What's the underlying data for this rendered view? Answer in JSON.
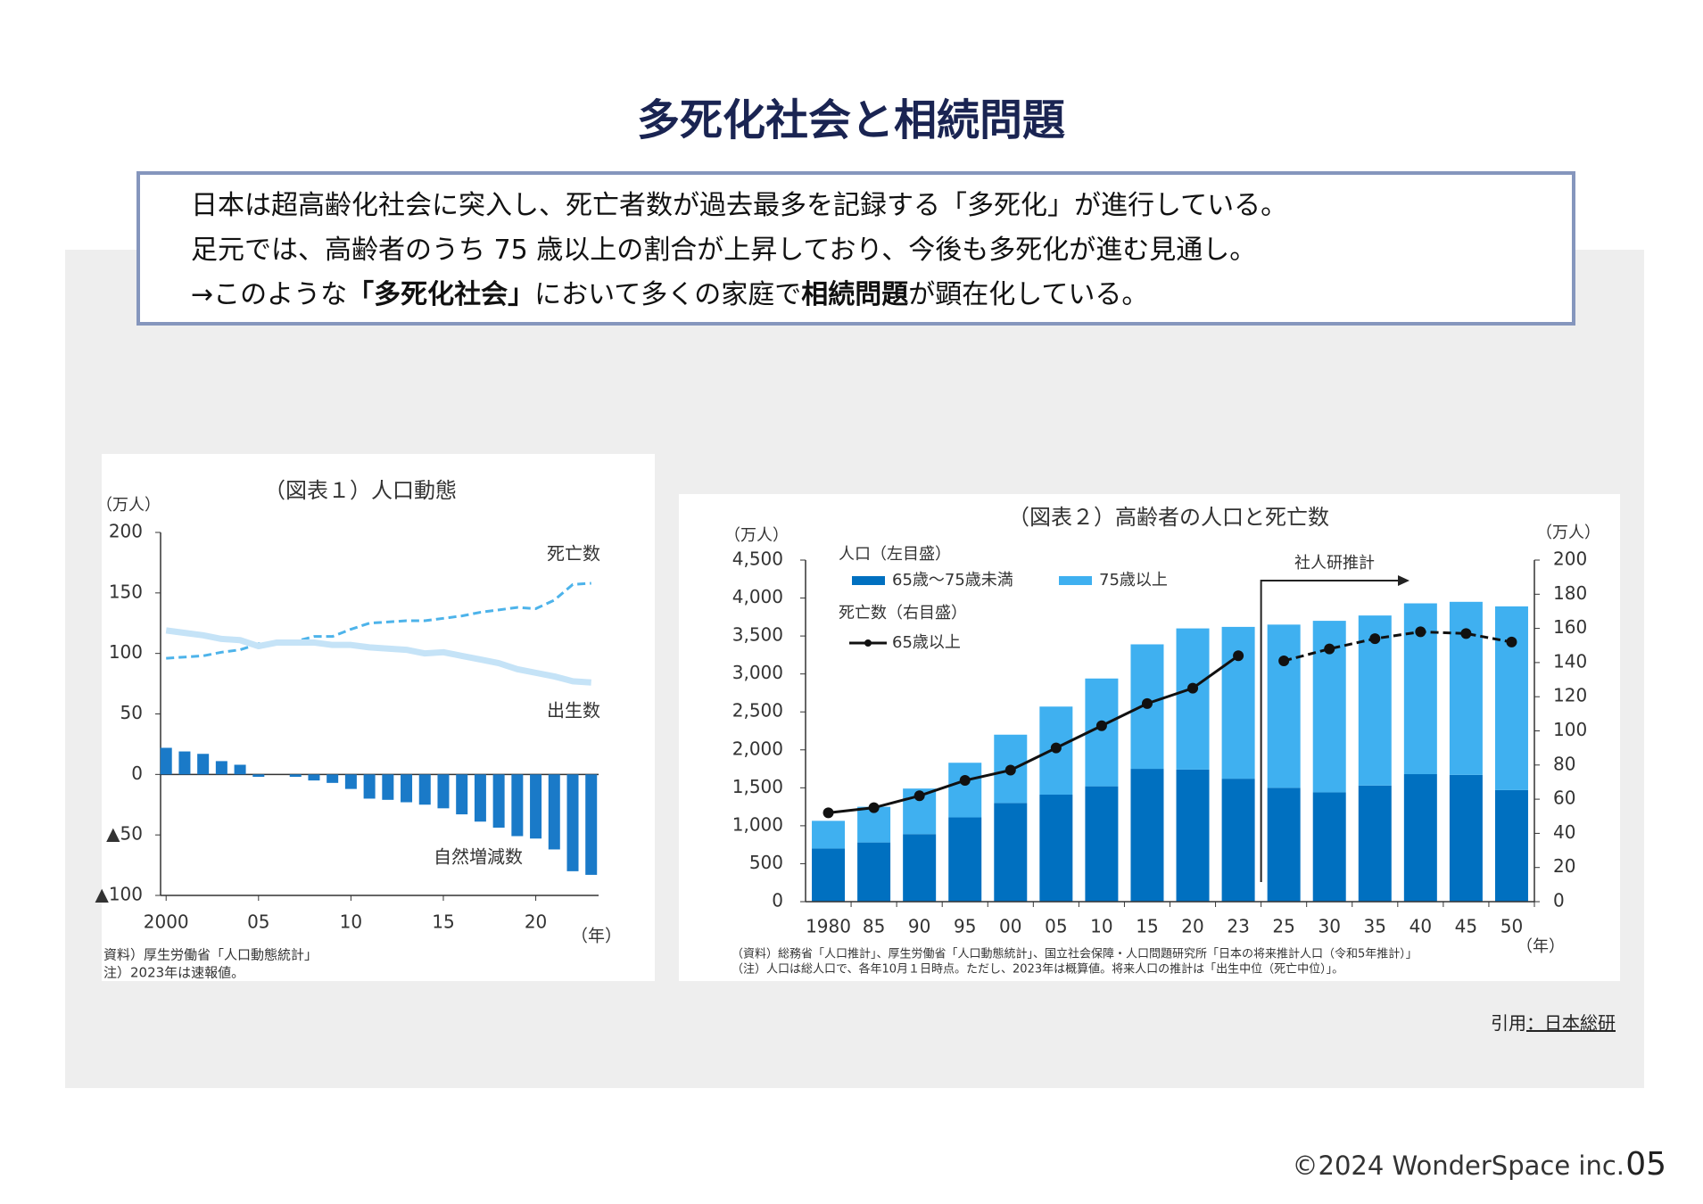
{
  "header": {
    "title": "多死化社会と相続問題"
  },
  "summary": {
    "lines": [
      [
        {
          "text": "日本は超高齢化社会に突入し、死亡者数が過去最多を記録する「多死化」が進行している。",
          "bold": false
        }
      ],
      [
        {
          "text": "足元では、高齢者のうち 75 歳以上の割合が上昇しており、今後も多死化が進む見通し。",
          "bold": false
        }
      ],
      [
        {
          "text": "→このような",
          "bold": false
        },
        {
          "text": "「多死化社会」",
          "bold": true
        },
        {
          "text": "において多くの家庭で",
          "bold": false
        },
        {
          "text": "相続問題",
          "bold": true
        },
        {
          "text": "が顕在化している。",
          "bold": false
        }
      ]
    ]
  },
  "chart_data": [
    {
      "type": "bar_line",
      "title": "（図表１）人口動態",
      "y_unit": "（万人）",
      "x_unit": "（年）",
      "x": [
        2000,
        2001,
        2002,
        2003,
        2004,
        2005,
        2006,
        2007,
        2008,
        2009,
        2010,
        2011,
        2012,
        2013,
        2014,
        2015,
        2016,
        2017,
        2018,
        2019,
        2020,
        2021,
        2022,
        2023
      ],
      "xlim": [
        1999.7,
        2023.4
      ],
      "xticks": [
        {
          "value": 2000,
          "label": "2000"
        },
        {
          "value": 2005,
          "label": "05"
        },
        {
          "value": 2010,
          "label": "10"
        },
        {
          "value": 2015,
          "label": "15"
        },
        {
          "value": 2020,
          "label": "20"
        }
      ],
      "ylim": [
        -100,
        200
      ],
      "yticks": [
        {
          "value": -100,
          "label": "▲100"
        },
        {
          "value": -50,
          "label": "▲50"
        },
        0,
        50,
        100,
        150,
        200
      ],
      "series": [
        {
          "name": "死亡数",
          "type": "line",
          "style": "dashed",
          "color": "#4db3ea",
          "values": [
            96,
            97,
            98,
            101,
            103,
            108,
            108,
            110,
            114,
            114,
            120,
            125,
            126,
            127,
            127,
            129,
            131,
            134,
            136,
            138,
            137,
            144,
            157,
            158
          ]
        },
        {
          "name": "出生数",
          "type": "line",
          "style": "solid",
          "color": "#c5e3f7",
          "values": [
            119,
            117,
            115,
            112,
            111,
            106,
            109,
            109,
            109,
            107,
            107,
            105,
            104,
            103,
            100,
            101,
            98,
            95,
            92,
            87,
            84,
            81,
            77,
            76
          ]
        },
        {
          "name": "自然増減数",
          "type": "bar",
          "color": "#1a7ac8",
          "values": [
            22,
            19,
            17,
            11,
            8,
            -2,
            0,
            -2,
            -5,
            -7,
            -12,
            -20,
            -21,
            -23,
            -25,
            -28,
            -33,
            -39,
            -44,
            -51,
            -53,
            -62,
            -80,
            -83
          ]
        }
      ],
      "notes": [
        "資料）厚生労働省「人口動態統計」",
        "注）2023年は速報値。"
      ]
    },
    {
      "type": "stacked_bar_line",
      "title": "（図表２）高齢者の人口と死亡数",
      "y_unit": "（万人）",
      "y2_unit": "（万人）",
      "x_unit": "（年）",
      "categories": [
        "1980",
        "85",
        "90",
        "95",
        "00",
        "05",
        "10",
        "15",
        "20",
        "23",
        "25",
        "30",
        "35",
        "40",
        "45",
        "50"
      ],
      "ylim": [
        0,
        4500
      ],
      "yticks": [
        0,
        500,
        {
          "value": 1000,
          "label": "1,000"
        },
        {
          "value": 1500,
          "label": "1,500"
        },
        {
          "value": 2000,
          "label": "2,000"
        },
        {
          "value": 2500,
          "label": "2,500"
        },
        {
          "value": 3000,
          "label": "3,000"
        },
        {
          "value": 3500,
          "label": "3,500"
        },
        {
          "value": 4000,
          "label": "4,000"
        },
        {
          "value": 4500,
          "label": "4,500"
        }
      ],
      "y2lim": [
        0,
        200
      ],
      "y2ticks": [
        0,
        20,
        40,
        60,
        80,
        100,
        120,
        140,
        160,
        180,
        200
      ],
      "legend_groups": [
        "人口（左目盛）",
        "死亡数（右目盛）"
      ],
      "series": [
        {
          "name": "65歳～75歳未満",
          "type": "bar",
          "color": "#0070c0",
          "values": [
            700,
            780,
            890,
            1110,
            1300,
            1410,
            1520,
            1750,
            1740,
            1620,
            1500,
            1440,
            1530,
            1680,
            1670,
            1470
          ]
        },
        {
          "name": "75歳以上",
          "type": "bar",
          "color": "#3fb0f0",
          "values": [
            365,
            470,
            600,
            720,
            900,
            1160,
            1420,
            1640,
            1860,
            2000,
            2150,
            2260,
            2240,
            2250,
            2280,
            2420
          ]
        },
        {
          "name": "65歳以上",
          "type": "line",
          "axis": "y2",
          "color": "#111111",
          "values": [
            52,
            55,
            62,
            71,
            77,
            90,
            103,
            116,
            125,
            144,
            141,
            148,
            154,
            158,
            157,
            152
          ]
        }
      ],
      "projection_label": "社人研推計",
      "projection_from": "25",
      "notes": [
        "（資料）総務省「人口推計」、厚生労働省「人口動態統計」、国立社会保障・人口問題研究所「日本の将来推計人口（令和5年推計）」",
        "（注）人口は総人口で、各年10月１日時点。ただし、2023年は概算値。将来人口の推計は「出生中位（死亡中位）」。"
      ]
    }
  ],
  "source": {
    "prefix": "引用",
    "link": "：日本総研"
  },
  "footer": {
    "copyright": "©2024 WonderSpace inc.",
    "page": "05"
  }
}
